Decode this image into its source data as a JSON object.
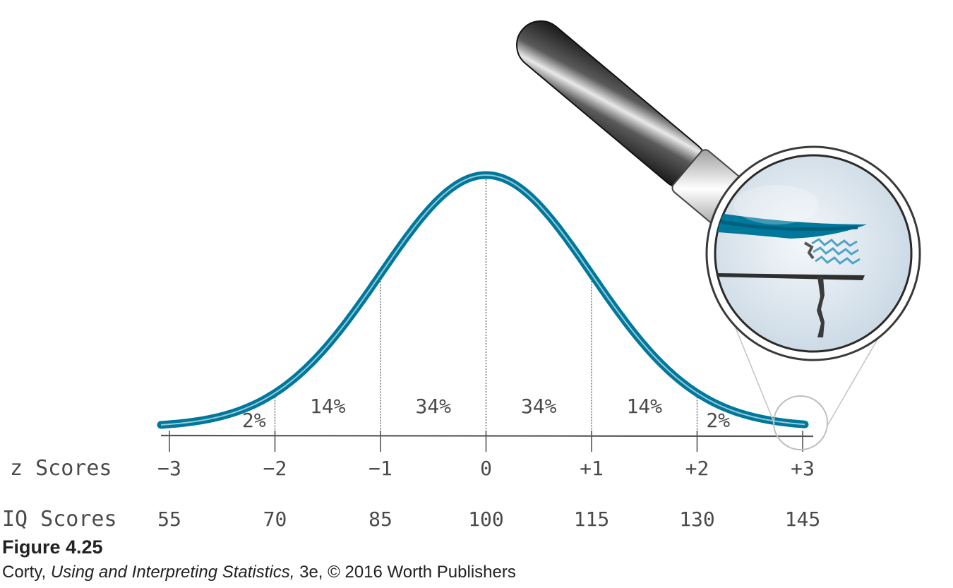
{
  "figure": {
    "label": "Figure 4.25",
    "credit_author": "Corty,",
    "credit_book": "Using and Interpreting Statistics,",
    "credit_rest": "3e, © 2016 Worth Publishers"
  },
  "row_labels": {
    "z": "z Scores",
    "iq": "IQ Scores"
  },
  "chart_data": {
    "type": "area",
    "distribution": "normal",
    "z_ticks": [
      "−3",
      "−2",
      "−1",
      "0",
      "+1",
      "+2",
      "+3"
    ],
    "iq_ticks": [
      "55",
      "70",
      "85",
      "100",
      "115",
      "130",
      "145"
    ],
    "z_values": [
      -3,
      -2,
      -1,
      0,
      1,
      2,
      3
    ],
    "iq_values": [
      55,
      70,
      85,
      100,
      115,
      130,
      145
    ],
    "region_percents": [
      "2%",
      "14%",
      "34%",
      "34%",
      "14%",
      "2%"
    ],
    "xlim": [
      -3,
      3
    ]
  },
  "colors": {
    "curve": "#00789c",
    "sketch": "#555555",
    "lens_bg": "#dbe6ef",
    "handle_dark": "#2b2b2b"
  },
  "icons": {
    "magnifier": "magnifying-glass-icon"
  }
}
